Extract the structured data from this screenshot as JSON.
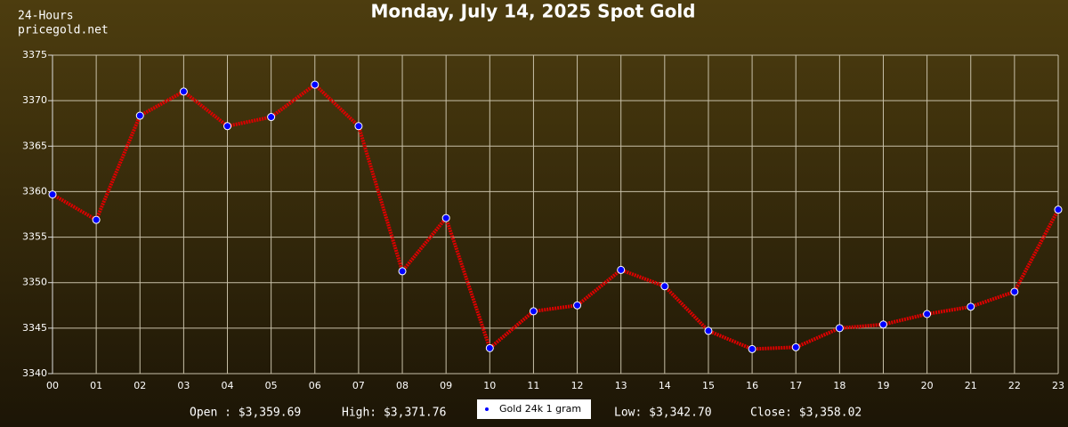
{
  "chart_data": {
    "type": "line",
    "title": "Monday, July 14, 2025 Spot Gold",
    "corner_text": [
      "24-Hours",
      "pricegold.net"
    ],
    "categories": [
      "00",
      "01",
      "02",
      "03",
      "04",
      "05",
      "06",
      "07",
      "08",
      "09",
      "10",
      "11",
      "12",
      "13",
      "14",
      "15",
      "16",
      "17",
      "18",
      "19",
      "20",
      "21",
      "22",
      "23"
    ],
    "series": [
      {
        "name": "Gold 24k 1 gram",
        "color": "#dd0000",
        "marker_color": "#0000ff",
        "values": [
          3359.69,
          3356.9,
          3368.35,
          3371.0,
          3367.2,
          3368.2,
          3371.76,
          3367.2,
          3351.25,
          3357.1,
          3342.8,
          3346.85,
          3347.5,
          3351.4,
          3349.6,
          3344.7,
          3342.7,
          3342.9,
          3345.0,
          3345.4,
          3346.55,
          3347.35,
          3349.0,
          3358.02
        ]
      }
    ],
    "ylim": [
      3340,
      3375
    ],
    "yticks": [
      3340,
      3345,
      3350,
      3355,
      3360,
      3365,
      3370,
      3375
    ],
    "grid": true,
    "stats": [
      "Open : $3,359.69",
      "High: $3,371.76",
      "Low: $3,342.70",
      "Close: $3,358.02"
    ]
  }
}
